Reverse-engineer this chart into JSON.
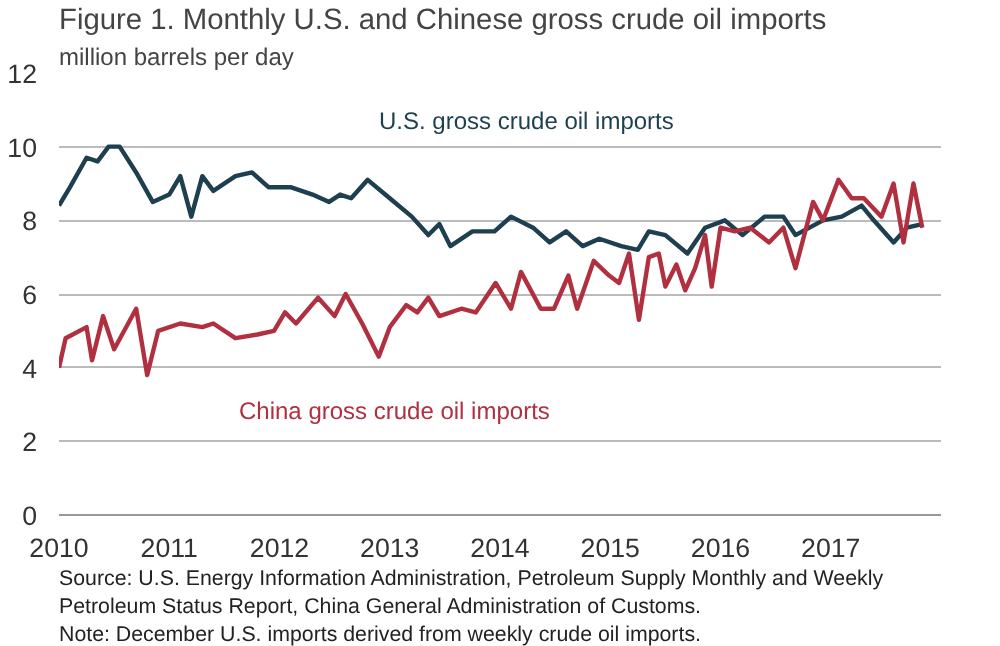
{
  "chart_data": {
    "type": "line",
    "title": "Figure 1. Monthly U.S. and Chinese gross crude oil imports",
    "subtitle": "million barrels per day",
    "xlim": [
      2010,
      2018
    ],
    "xticks": [
      2010,
      2011,
      2012,
      2013,
      2014,
      2015,
      2016,
      2017
    ],
    "ylim": [
      0,
      12
    ],
    "yticks": [
      0,
      2,
      4,
      6,
      8,
      10,
      12
    ],
    "grid": "y",
    "legend": false,
    "series": [
      {
        "name": "U.S. gross crude oil imports",
        "color": "#1d3f4f",
        "x": [
          2010.0,
          2010.1,
          2010.25,
          2010.35,
          2010.45,
          2010.55,
          2010.7,
          2010.85,
          2011.0,
          2011.1,
          2011.2,
          2011.3,
          2011.4,
          2011.6,
          2011.75,
          2011.9,
          2012.1,
          2012.3,
          2012.45,
          2012.55,
          2012.65,
          2012.8,
          2013.0,
          2013.2,
          2013.35,
          2013.45,
          2013.55,
          2013.75,
          2013.95,
          2014.1,
          2014.3,
          2014.45,
          2014.6,
          2014.75,
          2014.9,
          2015.1,
          2015.25,
          2015.35,
          2015.5,
          2015.7,
          2015.86,
          2016.04,
          2016.2,
          2016.4,
          2016.57,
          2016.68,
          2016.93,
          2017.1,
          2017.28,
          2017.39,
          2017.57,
          2017.69,
          2017.83
        ],
        "values": [
          8.4,
          8.9,
          9.7,
          9.6,
          10.0,
          10.0,
          9.3,
          8.5,
          8.7,
          9.2,
          8.1,
          9.2,
          8.8,
          9.2,
          9.3,
          8.9,
          8.9,
          8.7,
          8.5,
          8.7,
          8.6,
          9.1,
          8.6,
          8.1,
          7.6,
          7.9,
          7.3,
          7.7,
          7.7,
          8.1,
          7.8,
          7.4,
          7.7,
          7.3,
          7.5,
          7.3,
          7.2,
          7.7,
          7.6,
          7.1,
          7.8,
          8.0,
          7.6,
          8.1,
          8.1,
          7.6,
          8.0,
          8.1,
          8.4,
          8.0,
          7.4,
          7.8,
          7.9
        ]
      },
      {
        "name": "China gross crude oil imports",
        "color": "#b03040",
        "x": [
          2010.0,
          2010.06,
          2010.25,
          2010.3,
          2010.4,
          2010.5,
          2010.7,
          2010.8,
          2010.9,
          2011.1,
          2011.3,
          2011.4,
          2011.6,
          2011.8,
          2011.95,
          2012.05,
          2012.15,
          2012.35,
          2012.5,
          2012.6,
          2012.75,
          2012.9,
          2013.0,
          2013.15,
          2013.25,
          2013.35,
          2013.45,
          2013.65,
          2013.78,
          2013.96,
          2014.1,
          2014.19,
          2014.37,
          2014.49,
          2014.62,
          2014.7,
          2014.85,
          2014.99,
          2015.08,
          2015.17,
          2015.26,
          2015.35,
          2015.44,
          2015.5,
          2015.6,
          2015.68,
          2015.77,
          2015.86,
          2015.92,
          2016.0,
          2016.13,
          2016.27,
          2016.44,
          2016.57,
          2016.68,
          2016.84,
          2016.93,
          2017.07,
          2017.19,
          2017.3,
          2017.46,
          2017.57,
          2017.66,
          2017.75,
          2017.83
        ],
        "values": [
          4.0,
          4.8,
          5.1,
          4.2,
          5.4,
          4.5,
          5.6,
          3.8,
          5.0,
          5.2,
          5.1,
          5.2,
          4.8,
          4.9,
          5.0,
          5.5,
          5.2,
          5.9,
          5.4,
          6.0,
          5.2,
          4.3,
          5.1,
          5.7,
          5.5,
          5.9,
          5.4,
          5.6,
          5.5,
          6.3,
          5.6,
          6.6,
          5.6,
          5.6,
          6.5,
          5.6,
          6.9,
          6.5,
          6.3,
          7.1,
          5.3,
          7.0,
          7.1,
          6.2,
          6.8,
          6.1,
          6.7,
          7.6,
          6.2,
          7.8,
          7.7,
          7.8,
          7.4,
          7.8,
          6.7,
          8.5,
          8.0,
          9.1,
          8.6,
          8.6,
          8.1,
          9.0,
          7.4,
          9.0,
          7.8
        ]
      }
    ],
    "annotations": [
      "Source: U.S. Energy Information Administration, Petroleum Supply Monthly and Weekly",
      "Petroleum Status Report, China General Administration of Customs.",
      "Note: December U.S. imports derived from weekly crude oil imports."
    ]
  }
}
